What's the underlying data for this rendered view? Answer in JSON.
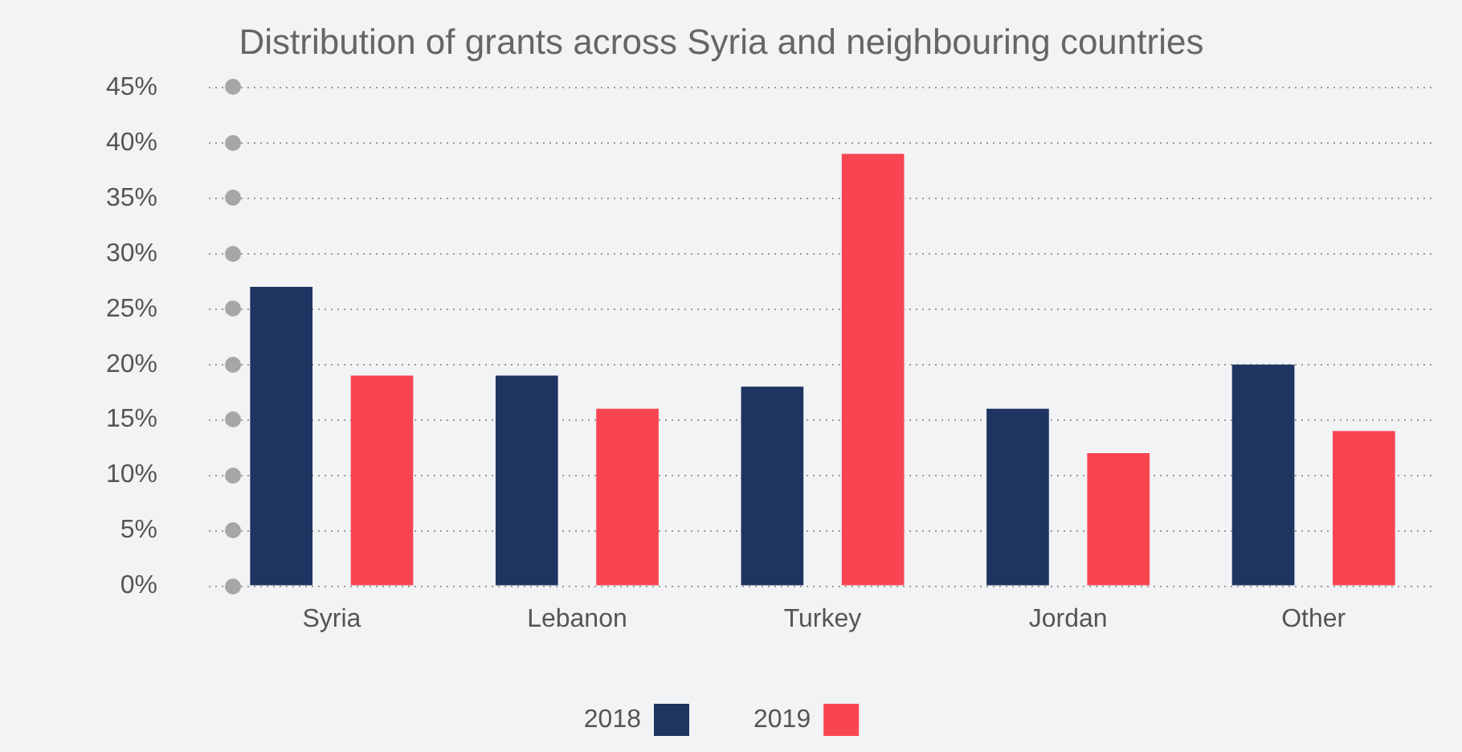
{
  "chart_data": {
    "type": "bar",
    "title": "Distribution of grants across Syria and neighbouring countries",
    "categories": [
      "Syria",
      "Lebanon",
      "Turkey",
      "Jordan",
      "Other"
    ],
    "series": [
      {
        "name": "2018",
        "color": "#1f3461",
        "values": [
          27,
          19,
          18,
          16,
          20
        ]
      },
      {
        "name": "2019",
        "color": "#f94552",
        "values": [
          19,
          16,
          39,
          12,
          14
        ]
      }
    ],
    "ylim": [
      0,
      45
    ],
    "yticks": [
      {
        "value": 0,
        "label": "0%"
      },
      {
        "value": 5,
        "label": "5%"
      },
      {
        "value": 10,
        "label": "10%"
      },
      {
        "value": 15,
        "label": "15%"
      },
      {
        "value": 20,
        "label": "20%"
      },
      {
        "value": 25,
        "label": "25%"
      },
      {
        "value": 30,
        "label": "30%"
      },
      {
        "value": 35,
        "label": "35%"
      },
      {
        "value": 40,
        "label": "40%"
      },
      {
        "value": 45,
        "label": "45%"
      }
    ],
    "grid": "y",
    "legend": "bottom"
  }
}
